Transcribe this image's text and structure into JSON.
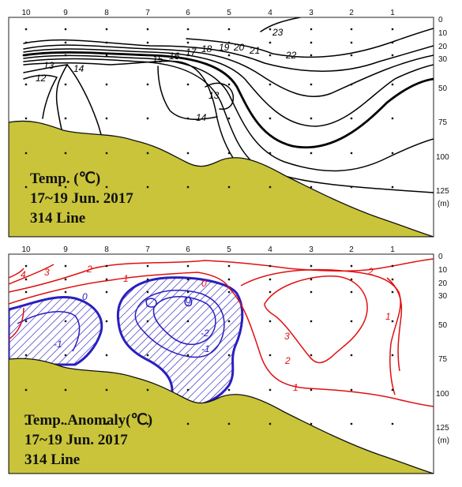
{
  "chart_data": [
    {
      "type": "contour",
      "title_lines": [
        "Temp. (℃)",
        "17~19 Jun. 2017",
        "314 Line"
      ],
      "x_ticks": [
        "10",
        "9",
        "8",
        "7",
        "6",
        "5",
        "4",
        "3",
        "2",
        "1"
      ],
      "y_ticks": [
        "0",
        "10",
        "20",
        "30",
        "50",
        "75",
        "100",
        "125",
        "(m)"
      ],
      "y_values": [
        0,
        10,
        20,
        30,
        50,
        75,
        100,
        125
      ],
      "ylim": [
        0,
        135
      ],
      "contour_labels": [
        "23",
        "22",
        "21",
        "20",
        "19",
        "18",
        "17",
        "16",
        "15",
        "14",
        "14",
        "13",
        "13",
        "12"
      ],
      "colors": {
        "contour": "#000000",
        "topography": "#c9c43a"
      }
    },
    {
      "type": "contour",
      "title_lines": [
        "Temp. Anomaly(℃)",
        "17~19 Jun. 2017",
        "314 Line"
      ],
      "x_ticks": [
        "10",
        "9",
        "8",
        "7",
        "6",
        "5",
        "4",
        "3",
        "2",
        "1"
      ],
      "y_ticks": [
        "0",
        "10",
        "20",
        "30",
        "50",
        "75",
        "100",
        "125",
        "(m)"
      ],
      "y_values": [
        0,
        10,
        20,
        30,
        50,
        75,
        100,
        125
      ],
      "ylim": [
        0,
        135
      ],
      "contour_labels": [
        "4",
        "3",
        "2",
        "1",
        "0",
        "0",
        "-1",
        "-1",
        "-2",
        "0",
        "1",
        "2",
        "3",
        "2",
        "1"
      ],
      "colors": {
        "positive": "#e01010",
        "negative": "#2a1fbf",
        "hatch": "#2a1fbf",
        "topography": "#c9c43a"
      }
    }
  ]
}
